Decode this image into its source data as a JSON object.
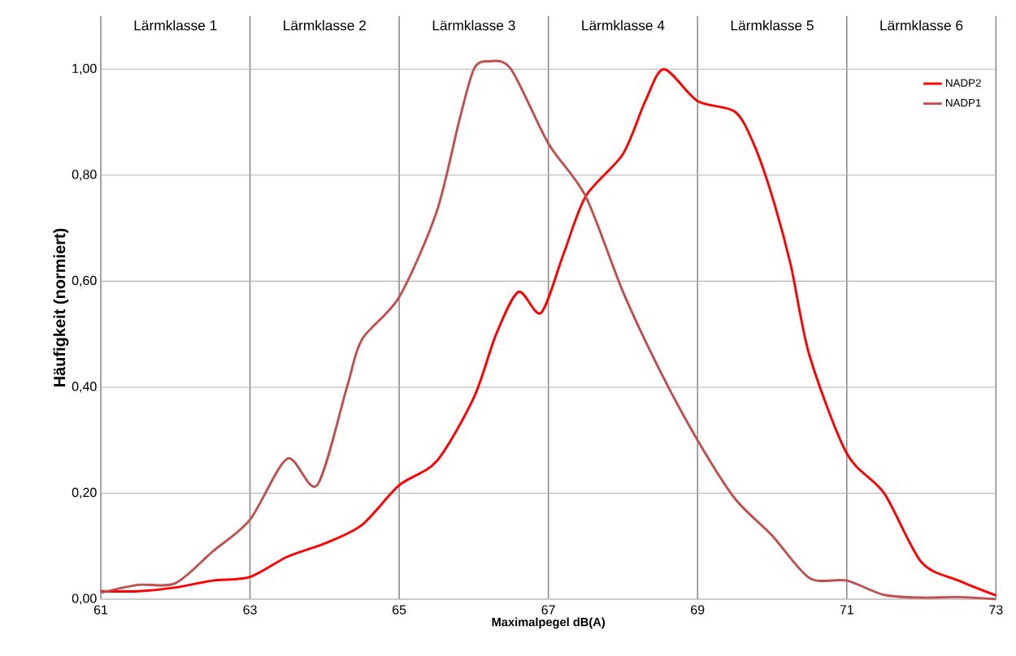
{
  "chart_data": {
    "type": "line",
    "xlabel": "Maximalpegel dB(A)",
    "ylabel": "Häufigkeit (normiert)",
    "xlim": [
      61,
      73
    ],
    "xticks": [
      61,
      63,
      65,
      67,
      69,
      71,
      73
    ],
    "ylim": [
      0,
      1.1
    ],
    "yticks": [
      {
        "value": 0,
        "label": "0,00"
      },
      {
        "value": 0.2,
        "label": "0,20"
      },
      {
        "value": 0.4,
        "label": "0,40"
      },
      {
        "value": 0.6,
        "label": "0,60"
      },
      {
        "value": 0.8,
        "label": "0,80"
      },
      {
        "value": 1.0,
        "label": "1,00"
      }
    ],
    "grid": true,
    "legend": "top right",
    "annotations": [
      "Lärmklasse 1",
      "Lärmklasse 2",
      "Lärmklasse 3",
      "Lärmklasse 4",
      "Lärmklasse 5",
      "Lärmklasse 6"
    ],
    "series": [
      {
        "name": "NADP2",
        "color": "#ff0000",
        "x": [
          61,
          61.5,
          62,
          62.5,
          63,
          63.5,
          64,
          64.5,
          65,
          65.5,
          66,
          66.3,
          66.6,
          66.9,
          67.2,
          67.5,
          68,
          68.3,
          68.55,
          69,
          69.5,
          69.75,
          70,
          70.25,
          70.5,
          71,
          71.5,
          72,
          72.5,
          73
        ],
        "values": [
          0.015,
          0.015,
          0.022,
          0.035,
          0.042,
          0.08,
          0.105,
          0.14,
          0.215,
          0.26,
          0.38,
          0.5,
          0.58,
          0.54,
          0.65,
          0.76,
          0.84,
          0.94,
          1.0,
          0.94,
          0.92,
          0.86,
          0.76,
          0.63,
          0.46,
          0.275,
          0.2,
          0.07,
          0.035,
          0.007
        ]
      },
      {
        "name": "NADP1",
        "color": "#c0504d",
        "x": [
          61,
          61.5,
          62,
          62.5,
          63,
          63.5,
          63.9,
          64.3,
          64.5,
          65,
          65.5,
          65.8,
          66,
          66.2,
          66.5,
          67,
          67.5,
          68,
          68.5,
          69,
          69.5,
          70,
          70.5,
          71,
          71.5,
          72,
          72.5,
          73
        ],
        "values": [
          0.012,
          0.027,
          0.03,
          0.09,
          0.15,
          0.265,
          0.215,
          0.4,
          0.49,
          0.57,
          0.73,
          0.9,
          1.0,
          1.015,
          1.0,
          0.86,
          0.76,
          0.58,
          0.43,
          0.3,
          0.19,
          0.12,
          0.04,
          0.035,
          0.008,
          0.003,
          0.004,
          0.0
        ]
      }
    ]
  }
}
